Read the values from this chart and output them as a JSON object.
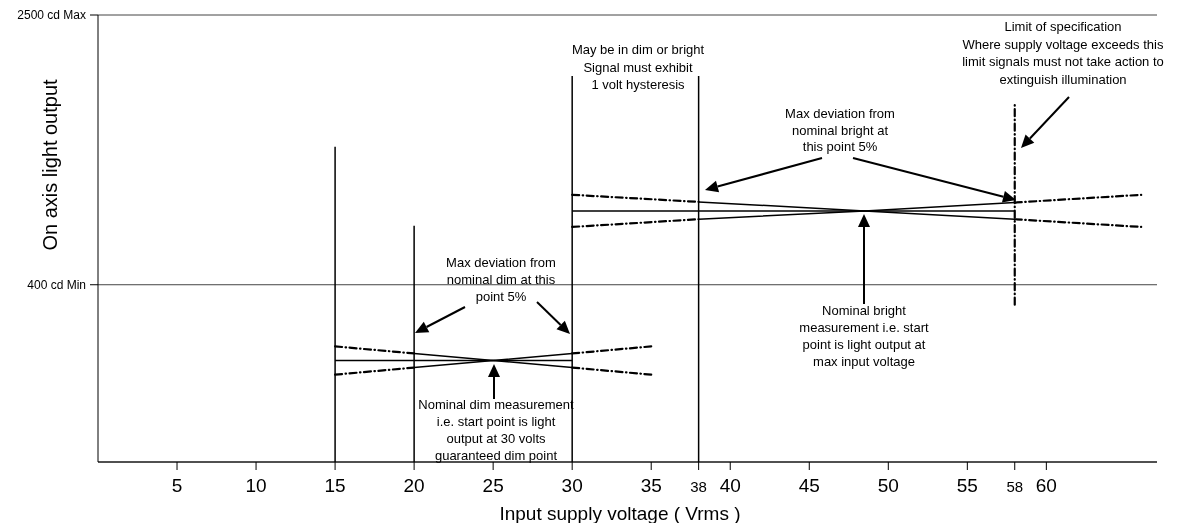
{
  "chart_data": {
    "type": "line",
    "xlabel": "Input supply voltage ( Vrms )",
    "ylabel": "On axis light output",
    "xlim": [
      0,
      67
    ],
    "ylim": [
      -980,
      2500
    ],
    "xticks": [
      5,
      10,
      15,
      20,
      25,
      30,
      35,
      {
        "value": 38,
        "label": "38"
      },
      40,
      45,
      50,
      55,
      {
        "value": 58,
        "label": "58"
      },
      60
    ],
    "yticks": [
      {
        "value": 2500,
        "label": "2500 cd Max"
      },
      {
        "value": 400,
        "label": "400 cd Min"
      }
    ],
    "grid": "y",
    "marker": "none",
    "series": [
      {
        "color": "#000000",
        "line_style": "solid",
        "x": [
          15,
          15
        ],
        "values": [
          -980,
          1475
        ]
      },
      {
        "color": "#000000",
        "line_style": "solid",
        "x": [
          20,
          20
        ],
        "values": [
          -980,
          860
        ]
      },
      {
        "color": "#000000",
        "line_style": "solid",
        "x": [
          30,
          30
        ],
        "values": [
          -980,
          2025
        ]
      },
      {
        "color": "#000000",
        "line_style": "solid",
        "x": [
          38,
          38
        ],
        "values": [
          -980,
          2025
        ]
      },
      {
        "color": "#000000",
        "line_style": "dashed",
        "x": [
          58,
          58
        ],
        "values": [
          245,
          1800
        ]
      },
      {
        "color": "#000000",
        "line_style": "solid",
        "x": [
          15,
          30
        ],
        "values": [
          -190,
          -190
        ]
      },
      {
        "color": "#000000",
        "line_style": "dashed",
        "x": [
          15,
          20
        ],
        "values": [
          -80,
          -135
        ]
      },
      {
        "color": "#000000",
        "line_style": "solid",
        "x": [
          20,
          25,
          30
        ],
        "values": [
          -135,
          -190,
          -245
        ]
      },
      {
        "color": "#000000",
        "line_style": "dashed",
        "x": [
          30,
          35
        ],
        "values": [
          -245,
          -300
        ]
      },
      {
        "color": "#000000",
        "line_style": "dashed",
        "x": [
          15,
          20
        ],
        "values": [
          -300,
          -245
        ]
      },
      {
        "color": "#000000",
        "line_style": "solid",
        "x": [
          20,
          25,
          30
        ],
        "values": [
          -245,
          -190,
          -135
        ]
      },
      {
        "color": "#000000",
        "line_style": "dashed",
        "x": [
          30,
          35
        ],
        "values": [
          -135,
          -80
        ]
      },
      {
        "color": "#000000",
        "line_style": "solid",
        "x": [
          30,
          58
        ],
        "values": [
          975,
          975
        ]
      },
      {
        "color": "#000000",
        "line_style": "dashed",
        "x": [
          30,
          38
        ],
        "values": [
          1100,
          1045
        ]
      },
      {
        "color": "#000000",
        "line_style": "solid",
        "x": [
          38,
          48.5,
          58
        ],
        "values": [
          1045,
          975,
          910
        ]
      },
      {
        "color": "#000000",
        "line_style": "dashed",
        "x": [
          58,
          66
        ],
        "values": [
          910,
          850
        ]
      },
      {
        "color": "#000000",
        "line_style": "dashed",
        "x": [
          30,
          38
        ],
        "values": [
          850,
          910
        ]
      },
      {
        "color": "#000000",
        "line_style": "solid",
        "x": [
          38,
          48.5,
          58
        ],
        "values": [
          910,
          975,
          1040
        ]
      },
      {
        "color": "#000000",
        "line_style": "dashed",
        "x": [
          58,
          66
        ],
        "values": [
          1040,
          1100
        ]
      }
    ],
    "annotations": [
      "May be in dim or bright\nSignal must exhibit\n1 volt hysteresis",
      "Limit of specification\nWhere supply voltage exceeds this\nlimit signals must not take action to\nextinguish illumination",
      "Max deviation from\nnominal bright at\nthis point 5%",
      "Max deviation from\nnominal dim at this\npoint 5%",
      "Nominal dim measurement\ni.e. start point is light\noutput at 30 volts\nguaranteed dim point",
      "Nominal bright\nmeasurement i.e. start\npoint is light output at\nmax input voltage"
    ]
  }
}
